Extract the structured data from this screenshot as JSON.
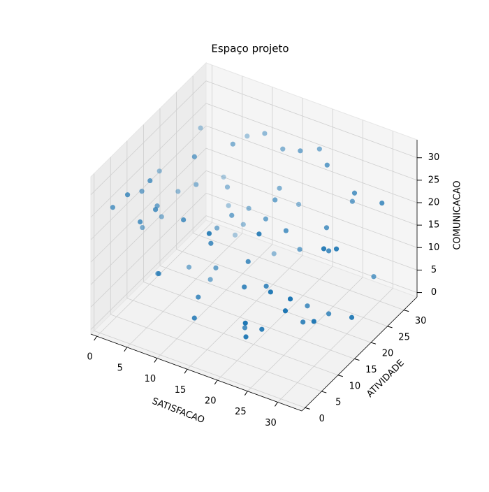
{
  "chart_data": {
    "type": "scatter3d",
    "title": "Espaço projeto",
    "xlabel": "SATISFACAO",
    "ylabel": "ATIVIDADE",
    "zlabel": "COMUNICACAO",
    "xlim": [
      -1,
      34
    ],
    "ylim": [
      -1,
      34
    ],
    "zlim": [
      -1,
      34
    ],
    "xticks": [
      0,
      5,
      10,
      15,
      20,
      25,
      30
    ],
    "yticks": [
      0,
      5,
      10,
      15,
      20,
      25,
      30
    ],
    "zticks": [
      0,
      5,
      10,
      15,
      20,
      25,
      30
    ],
    "grid": true,
    "series": [
      {
        "color": "#1f77b4",
        "x": [
          3,
          5,
          8,
          2,
          6,
          10,
          12,
          4,
          7,
          9,
          1,
          3,
          11,
          14,
          6,
          8,
          2,
          5,
          13,
          9,
          15,
          18,
          20,
          22,
          17,
          19,
          24,
          26,
          21,
          23,
          28,
          30,
          25,
          27,
          31,
          16,
          12,
          14,
          10,
          8,
          6,
          4,
          20,
          22,
          24,
          26,
          28,
          30,
          18,
          16,
          3,
          7,
          11,
          15,
          19,
          23,
          27,
          31,
          29,
          2,
          9,
          13,
          17,
          21,
          25,
          33,
          32,
          1,
          5,
          0
        ],
        "y": [
          25,
          20,
          30,
          15,
          28,
          22,
          18,
          10,
          5,
          27,
          2,
          12,
          25,
          8,
          30,
          14,
          20,
          3,
          6,
          17,
          28,
          12,
          30,
          4,
          22,
          9,
          25,
          14,
          18,
          2,
          26,
          10,
          6,
          20,
          15,
          31,
          28,
          3,
          7,
          24,
          16,
          1,
          24,
          8,
          19,
          29,
          5,
          13,
          11,
          21,
          32,
          4,
          15,
          27,
          26,
          7,
          20,
          1,
          30,
          9,
          19,
          29,
          2,
          12,
          23,
          16,
          27,
          11,
          6,
          18
        ],
        "z": [
          28,
          20,
          25,
          15,
          10,
          30,
          18,
          22,
          12,
          8,
          26,
          5,
          14,
          20,
          2,
          32,
          17,
          24,
          9,
          3,
          27,
          15,
          28,
          6,
          21,
          12,
          30,
          4,
          19,
          11,
          25,
          9,
          16,
          2,
          22,
          13,
          29,
          7,
          24,
          18,
          5,
          31,
          10,
          26,
          3,
          20,
          14,
          23,
          1,
          17,
          12,
          27,
          8,
          19,
          30,
          6,
          16,
          21,
          4,
          25,
          13,
          2,
          28,
          11,
          18,
          7,
          24,
          15,
          31,
          22
        ]
      }
    ]
  }
}
